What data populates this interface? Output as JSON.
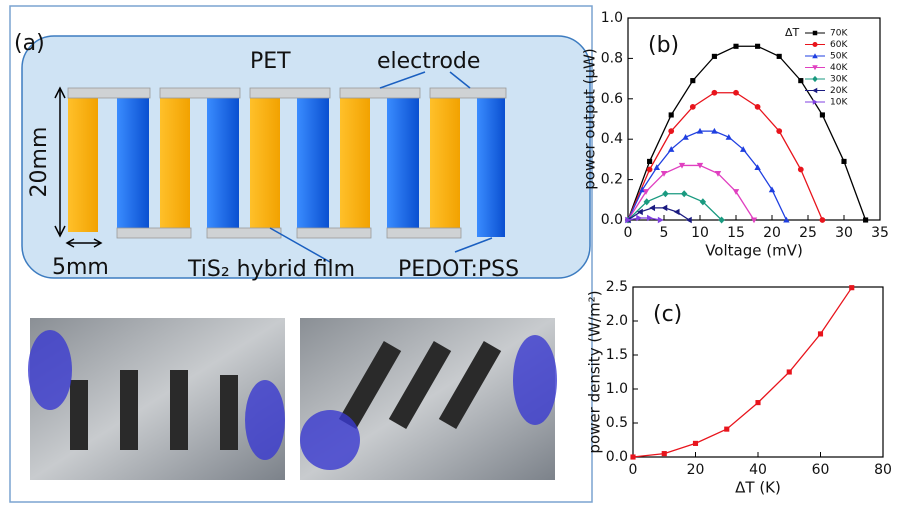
{
  "diagram": {
    "panel_label": "(a)",
    "substrate": "PET",
    "electrode": "electrode",
    "height": "20mm",
    "width": "5mm",
    "film_n": "TiS₂ hybrid film",
    "film_p": "PEDOT:PSS"
  },
  "chart_data": [
    {
      "type": "line",
      "panel_label": "(b)",
      "x_label": "Voltage (mV)",
      "y_label": "power output (μW)",
      "xlim": [
        0,
        35
      ],
      "xticks": [
        0,
        5,
        10,
        15,
        20,
        25,
        30,
        35
      ],
      "ylim": [
        0,
        1
      ],
      "yticks": [
        {
          "value": 0,
          "label": "0.0"
        },
        0.2,
        0.4,
        0.6,
        0.8,
        {
          "value": 1,
          "label": "1.0"
        }
      ],
      "legend_title": "ΔT",
      "legend": "upper right",
      "series": [
        {
          "name": "70K",
          "color": "#000000",
          "marker": "square",
          "x": [
            0,
            3,
            6,
            9,
            12,
            15,
            18,
            21,
            24,
            27,
            30,
            33
          ],
          "values": [
            0,
            0.29,
            0.52,
            0.69,
            0.81,
            0.86,
            0.86,
            0.81,
            0.69,
            0.52,
            0.29,
            0
          ]
        },
        {
          "name": "60K",
          "color": "#e8141c",
          "marker": "circle",
          "x": [
            0,
            3,
            6,
            9,
            12,
            15,
            18,
            21,
            24,
            27
          ],
          "values": [
            0,
            0.25,
            0.44,
            0.56,
            0.63,
            0.63,
            0.56,
            0.44,
            0.25,
            0
          ]
        },
        {
          "name": "50K",
          "color": "#1f3fe0",
          "marker": "triangle-up",
          "x": [
            0,
            2,
            4,
            6,
            8,
            10,
            12,
            14,
            16,
            18,
            20,
            22
          ],
          "values": [
            0,
            0.15,
            0.26,
            0.35,
            0.41,
            0.44,
            0.44,
            0.41,
            0.35,
            0.26,
            0.15,
            0
          ]
        },
        {
          "name": "40K",
          "color": "#e040c0",
          "marker": "triangle-down",
          "x": [
            0,
            2.5,
            5,
            7.5,
            10,
            12.5,
            15,
            17.5
          ],
          "values": [
            0,
            0.14,
            0.23,
            0.27,
            0.27,
            0.23,
            0.14,
            0
          ]
        },
        {
          "name": "30K",
          "color": "#1a9a80",
          "marker": "diamond",
          "x": [
            0,
            2.6,
            5.2,
            7.8,
            10.4,
            13
          ],
          "values": [
            0,
            0.09,
            0.13,
            0.13,
            0.09,
            0
          ]
        },
        {
          "name": "20K",
          "color": "#1a1a80",
          "marker": "triangle-left",
          "x": [
            0,
            1.7,
            3.4,
            5.1,
            6.8,
            8.5
          ],
          "values": [
            0,
            0.04,
            0.06,
            0.06,
            0.04,
            0
          ]
        },
        {
          "name": "10K",
          "color": "#8040e0",
          "marker": "triangle-right",
          "x": [
            0,
            1.5,
            3,
            4.5
          ],
          "values": [
            0,
            0.01,
            0.01,
            0
          ]
        }
      ]
    },
    {
      "type": "line",
      "panel_label": "(c)",
      "x_label": "ΔT (K)",
      "y_label": "power density (W/m²)",
      "xlim": [
        0,
        80
      ],
      "xticks": [
        0,
        20,
        40,
        60,
        80
      ],
      "ylim": [
        0,
        2.5
      ],
      "yticks": [
        {
          "value": 0,
          "label": "0.0"
        },
        0.5,
        {
          "value": 1,
          "label": "1.0"
        },
        1.5,
        {
          "value": 2,
          "label": "2.0"
        },
        2.5
      ],
      "color": "#e8141c",
      "marker": "square",
      "x": [
        0,
        10,
        20,
        30,
        40,
        50,
        60,
        70
      ],
      "values": [
        0,
        0.05,
        0.2,
        0.41,
        0.8,
        1.25,
        1.81,
        2.49
      ]
    }
  ]
}
